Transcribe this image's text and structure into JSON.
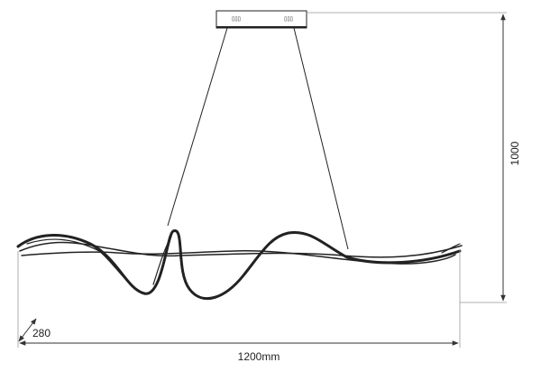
{
  "dimensions": {
    "height": "1000",
    "depth": "280",
    "width": "1200mm"
  }
}
